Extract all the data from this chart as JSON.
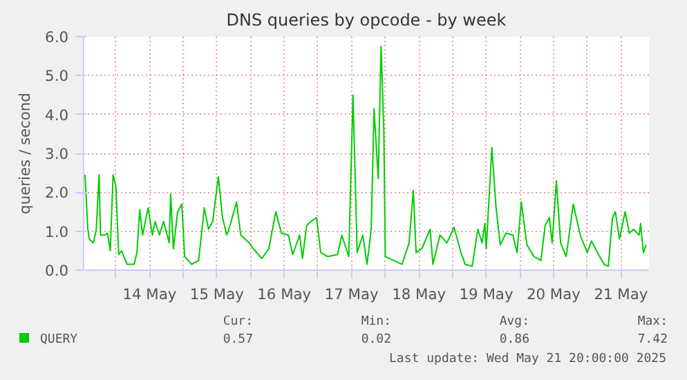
{
  "chart_data": {
    "type": "line",
    "title": "DNS queries by opcode - by week",
    "ylabel": "queries / second",
    "x": [
      "2025-05-13T13:00",
      "2025-05-13T14:00",
      "2025-05-13T14:30",
      "2025-05-13T16:00",
      "2025-05-13T17:00",
      "2025-05-13T18:00",
      "2025-05-13T18:30",
      "2025-05-13T20:00",
      "2025-05-13T21:00",
      "2025-05-13T22:00",
      "2025-05-13T23:00",
      "2025-05-14T00:00",
      "2025-05-14T01:00",
      "2025-05-14T02:00",
      "2025-05-14T04:00",
      "2025-05-14T06:30",
      "2025-05-14T07:30",
      "2025-05-14T08:30",
      "2025-05-14T09:30",
      "2025-05-14T11:30",
      "2025-05-14T13:00",
      "2025-05-14T14:00",
      "2025-05-14T15:30",
      "2025-05-14T17:00",
      "2025-05-14T19:00",
      "2025-05-14T19:30",
      "2025-05-14T20:30",
      "2025-05-14T22:00",
      "2025-05-14T23:30",
      "2025-05-15T00:30",
      "2025-05-15T03:00",
      "2025-05-15T05:30",
      "2025-05-15T07:30",
      "2025-05-15T09:00",
      "2025-05-15T10:30",
      "2025-05-15T12:30",
      "2025-05-15T14:00",
      "2025-05-15T15:30",
      "2025-05-15T16:30",
      "2025-05-15T19:00",
      "2025-05-15T20:30",
      "2025-05-15T23:30",
      "2025-05-16T01:00",
      "2025-05-16T04:00",
      "2025-05-16T06:30",
      "2025-05-16T09:00",
      "2025-05-16T11:00",
      "2025-05-16T13:30",
      "2025-05-16T15:00",
      "2025-05-16T17:30",
      "2025-05-16T18:30",
      "2025-05-16T20:00",
      "2025-05-16T21:30",
      "2025-05-16T23:30",
      "2025-05-17T01:00",
      "2025-05-17T03:30",
      "2025-05-17T07:00",
      "2025-05-17T08:30",
      "2025-05-17T11:00",
      "2025-05-17T12:30",
      "2025-05-17T14:00",
      "2025-05-17T16:00",
      "2025-05-17T17:30",
      "2025-05-17T19:00",
      "2025-05-17T20:00",
      "2025-05-17T21:30",
      "2025-05-17T22:30",
      "2025-05-17T23:30",
      "2025-05-18T00:00",
      "2025-05-18T03:00",
      "2025-05-18T06:00",
      "2025-05-18T08:30",
      "2025-05-18T10:00",
      "2025-05-18T11:00",
      "2025-05-18T13:00",
      "2025-05-18T16:00",
      "2025-05-18T17:00",
      "2025-05-18T19:30",
      "2025-05-18T22:00",
      "2025-05-19T00:30",
      "2025-05-19T03:00",
      "2025-05-19T04:30",
      "2025-05-19T07:00",
      "2025-05-19T09:00",
      "2025-05-19T10:30",
      "2025-05-19T11:30",
      "2025-05-19T12:00",
      "2025-05-19T14:00",
      "2025-05-19T15:30",
      "2025-05-19T17:00",
      "2025-05-19T19:00",
      "2025-05-19T21:30",
      "2025-05-19T23:00",
      "2025-05-20T00:30",
      "2025-05-20T02:30",
      "2025-05-20T05:00",
      "2025-05-20T07:30",
      "2025-05-20T09:00",
      "2025-05-20T10:30",
      "2025-05-20T11:30",
      "2025-05-20T13:00",
      "2025-05-20T14:30",
      "2025-05-20T16:30",
      "2025-05-20T19:00",
      "2025-05-20T21:30",
      "2025-05-21T00:00",
      "2025-05-21T01:30",
      "2025-05-21T04:00",
      "2025-05-21T06:00",
      "2025-05-21T07:30",
      "2025-05-21T09:00",
      "2025-05-21T10:00",
      "2025-05-21T11:30",
      "2025-05-21T13:30",
      "2025-05-21T15:00",
      "2025-05-21T16:30",
      "2025-05-21T18:30",
      "2025-05-21T19:00",
      "2025-05-21T20:00",
      "2025-05-21T21:00"
    ],
    "series": [
      {
        "name": "QUERY",
        "color": "#00cc00",
        "values": [
          2.45,
          1.05,
          0.8,
          0.7,
          1.05,
          2.45,
          0.9,
          0.9,
          0.95,
          0.5,
          2.45,
          2.15,
          0.4,
          0.5,
          0.15,
          0.15,
          0.45,
          1.55,
          0.9,
          1.6,
          0.9,
          1.25,
          0.9,
          1.25,
          0.7,
          1.95,
          0.55,
          1.5,
          1.7,
          0.35,
          0.15,
          0.25,
          1.6,
          1.05,
          1.25,
          2.4,
          1.35,
          0.9,
          1.1,
          1.75,
          0.9,
          0.7,
          0.55,
          0.3,
          0.55,
          1.5,
          0.95,
          0.9,
          0.4,
          0.9,
          0.3,
          1.15,
          1.25,
          1.35,
          0.45,
          0.35,
          0.4,
          0.9,
          0.35,
          4.5,
          0.45,
          0.9,
          0.15,
          1.05,
          4.15,
          2.35,
          5.75,
          3.6,
          0.35,
          0.25,
          0.15,
          0.7,
          2.05,
          0.45,
          0.55,
          1.05,
          0.15,
          0.9,
          0.7,
          1.1,
          0.45,
          0.15,
          0.1,
          1.05,
          0.7,
          1.2,
          0.55,
          3.15,
          1.6,
          0.65,
          0.95,
          0.9,
          0.45,
          1.75,
          0.65,
          0.35,
          0.25,
          1.15,
          1.35,
          0.7,
          2.3,
          0.7,
          0.35,
          1.7,
          0.9,
          0.45,
          0.75,
          0.4,
          0.15,
          0.1,
          1.35,
          1.5,
          0.8,
          1.5,
          0.95,
          1.05,
          0.9,
          1.2,
          0.45,
          0.65
        ]
      }
    ],
    "xlim": [
      "2025-05-13T12:30",
      "2025-05-21T22:00"
    ],
    "xticks": [
      {
        "value": "2025-05-14T00:00",
        "label": null
      },
      {
        "value": "2025-05-14T12:00",
        "label": "14 May"
      },
      {
        "value": "2025-05-15T00:00",
        "label": null
      },
      {
        "value": "2025-05-15T12:00",
        "label": "15 May"
      },
      {
        "value": "2025-05-16T00:00",
        "label": null
      },
      {
        "value": "2025-05-16T12:00",
        "label": "16 May"
      },
      {
        "value": "2025-05-17T00:00",
        "label": null
      },
      {
        "value": "2025-05-17T12:00",
        "label": "17 May"
      },
      {
        "value": "2025-05-18T00:00",
        "label": null
      },
      {
        "value": "2025-05-18T12:00",
        "label": "18 May"
      },
      {
        "value": "2025-05-19T00:00",
        "label": null
      },
      {
        "value": "2025-05-19T12:00",
        "label": "19 May"
      },
      {
        "value": "2025-05-20T00:00",
        "label": null
      },
      {
        "value": "2025-05-20T12:00",
        "label": "20 May"
      },
      {
        "value": "2025-05-21T00:00",
        "label": null
      },
      {
        "value": "2025-05-21T12:00",
        "label": "21 May"
      }
    ],
    "ylim": [
      0,
      6
    ],
    "yticks": [
      {
        "value": 0,
        "label": "0.0"
      },
      {
        "value": 1,
        "label": "1.0"
      },
      {
        "value": 2,
        "label": "2.0"
      },
      {
        "value": 3,
        "label": "3.0"
      },
      {
        "value": 4,
        "label": "4.0"
      },
      {
        "value": 5,
        "label": "5.0"
      },
      {
        "value": 6,
        "label": "6.0"
      }
    ],
    "grid": true,
    "legend": "bottom left",
    "line_style": "solid",
    "marker": "none",
    "annotations": [
      "Cur:",
      "Min:",
      "Avg:",
      "Max:",
      "0.57",
      "0.02",
      "0.86",
      "7.42",
      "Last update: Wed May 21 20:00:00 2025"
    ]
  }
}
